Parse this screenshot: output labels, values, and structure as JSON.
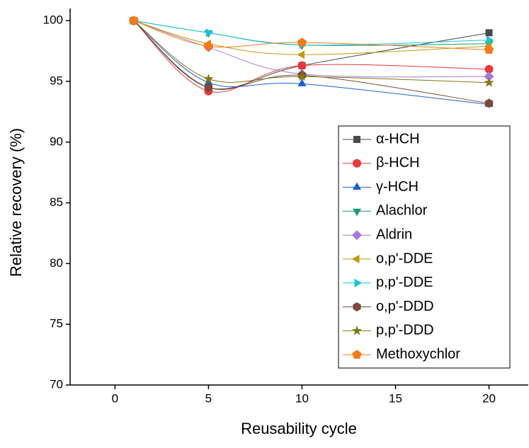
{
  "chart_data": {
    "type": "line",
    "x_label": "Reusability cycle",
    "y_label": "Relative recovery (%)",
    "xlim": [
      -2.4,
      22.1
    ],
    "xticks": [
      0,
      5,
      10,
      15,
      20
    ],
    "ylim": [
      70,
      101
    ],
    "yticks": [
      70,
      75,
      80,
      85,
      90,
      95,
      100
    ],
    "x": [
      1,
      5,
      10,
      20
    ],
    "smooth": true,
    "series": [
      {
        "name": "α-HCH",
        "color": "#4a4a4a",
        "marker": "square",
        "values": [
          100,
          94.5,
          96.3,
          99.0
        ]
      },
      {
        "name": "β-HCH",
        "color": "#e8383d",
        "marker": "circle",
        "values": [
          100,
          94.2,
          96.3,
          96.0
        ]
      },
      {
        "name": "γ-HCH",
        "color": "#1c5fd4",
        "marker": "triangle-up",
        "values": [
          100,
          94.9,
          94.8,
          93.1
        ]
      },
      {
        "name": "Alachlor",
        "color": "#1a9c7a",
        "marker": "triangle-down",
        "values": [
          100,
          99.0,
          98.0,
          98.1
        ]
      },
      {
        "name": "Aldrin",
        "color": "#a47bdc",
        "marker": "diamond",
        "values": [
          100,
          97.8,
          95.6,
          95.4
        ]
      },
      {
        "name": "o,p'-DDE",
        "color": "#c49a12",
        "marker": "triangle-left",
        "values": [
          100,
          98.1,
          97.2,
          97.9
        ]
      },
      {
        "name": "p,p'-DDE",
        "color": "#19c4d8",
        "marker": "triangle-right",
        "values": [
          100,
          99.0,
          98.0,
          98.4
        ]
      },
      {
        "name": "o,p'-DDD",
        "color": "#7b4a3c",
        "marker": "hexagon",
        "values": [
          100,
          94.5,
          95.5,
          93.2
        ]
      },
      {
        "name": "p,p'-DDD",
        "color": "#7d7b12",
        "marker": "star",
        "values": [
          100,
          95.2,
          95.4,
          94.9
        ]
      },
      {
        "name": "Methoxychlor",
        "color": "#f77a16",
        "marker": "pentagon",
        "values": [
          100,
          97.9,
          98.2,
          97.6
        ]
      }
    ]
  }
}
